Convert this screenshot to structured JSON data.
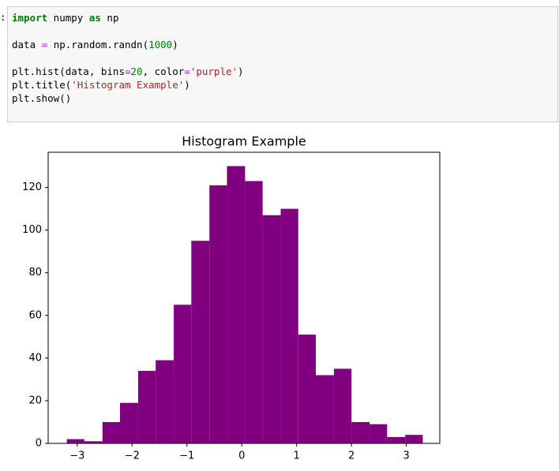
{
  "prompt": ":",
  "code": {
    "lines": [
      [
        "import",
        " numpy ",
        "as",
        " np"
      ],
      [
        "data ",
        "=",
        " np.random.randn(",
        "1000",
        ")"
      ],
      [
        "plt.hist(data, bins",
        "=",
        "20",
        ", color",
        "=",
        "'purple'",
        ")"
      ],
      [
        "plt.title(",
        "'Histogram Example'",
        ")"
      ],
      [
        "plt.show()"
      ]
    ]
  },
  "chart_data": {
    "type": "histogram",
    "title": "Histogram Example",
    "color": "#800080",
    "bins": [
      -3.19,
      -2.87,
      -2.54,
      -2.22,
      -1.89,
      -1.57,
      -1.24,
      -0.92,
      -0.59,
      -0.27,
      0.06,
      0.38,
      0.71,
      1.03,
      1.35,
      1.68,
      2.0,
      2.33,
      2.65,
      2.98,
      3.3
    ],
    "values": [
      2,
      1,
      10,
      19,
      34,
      39,
      65,
      95,
      121,
      130,
      123,
      107,
      110,
      51,
      32,
      35,
      10,
      9,
      3,
      4
    ],
    "xlim": [
      -3.53,
      3.61
    ],
    "ylim": [
      0,
      136.5
    ],
    "xticks": [
      {
        "value": -3,
        "label": "−3"
      },
      {
        "value": -2,
        "label": "−2"
      },
      {
        "value": -1,
        "label": "−1"
      },
      0,
      1,
      2,
      3
    ],
    "yticks": [
      0,
      20,
      40,
      60,
      80,
      100,
      120
    ]
  }
}
